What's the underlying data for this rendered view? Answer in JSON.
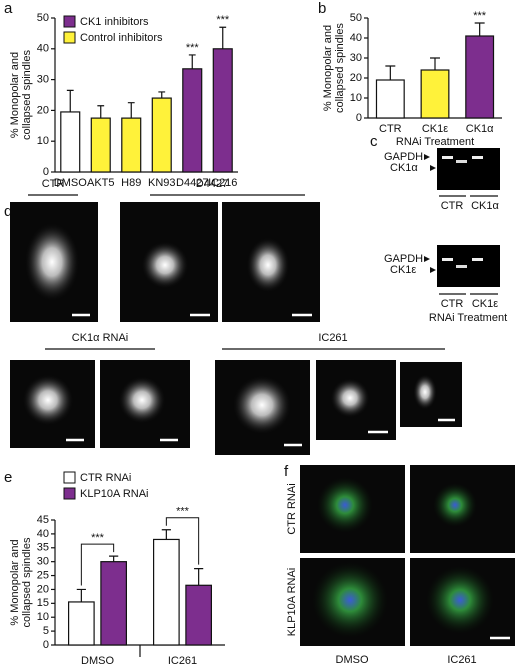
{
  "panel_labels": [
    "a",
    "b",
    "c",
    "d",
    "e",
    "f"
  ],
  "chart_data": [
    {
      "type": "bar",
      "categories": [
        "DMSO",
        "AKT5",
        "H89",
        "KN93",
        "D4427",
        "IC216"
      ],
      "values": [
        19.5,
        17.5,
        17.5,
        24,
        33.5,
        40
      ],
      "errors": [
        7,
        4,
        5,
        2,
        4.5,
        7
      ],
      "colors": [
        "#ffffff",
        "#fff23a",
        "#fff23a",
        "#fff23a",
        "#7d2e8e",
        "#7d2e8e"
      ],
      "significance": [
        null,
        null,
        null,
        null,
        "***",
        "***"
      ],
      "legend": [
        {
          "name": "CK1 inhibitors",
          "color": "#7d2e8e"
        },
        {
          "name": "Control inhibitors",
          "color": "#fff23a"
        }
      ],
      "y_label": [
        "% Monopolar and",
        "collapsed spindles"
      ],
      "ylim": [
        0,
        50
      ],
      "yticks": [
        0,
        10,
        20,
        30,
        40,
        50
      ]
    },
    {
      "type": "bar",
      "categories": [
        "CTR",
        "CK1ε",
        "CK1α"
      ],
      "values": [
        19,
        24,
        41
      ],
      "errors": [
        7,
        6,
        6.5
      ],
      "colors": [
        "#ffffff",
        "#fff23a",
        "#7d2e8e"
      ],
      "significance": [
        null,
        null,
        "***"
      ],
      "y_label": [
        "% Monopolar and",
        "collapsed spindles"
      ],
      "x_label": "RNAi Treatment",
      "ylim": [
        0,
        50
      ],
      "yticks": [
        0,
        10,
        20,
        30,
        40,
        50
      ]
    },
    {
      "type": "bar",
      "categories": [
        "DMSO",
        "IC261"
      ],
      "series": [
        {
          "name": "CTR RNAi",
          "color": "#ffffff",
          "values": [
            15.5,
            38
          ],
          "errors": [
            4.5,
            3.5
          ]
        },
        {
          "name": "KLP10A RNAi",
          "color": "#7d2e8e",
          "values": [
            30,
            21.5
          ],
          "errors": [
            2,
            6
          ]
        }
      ],
      "significance": [
        "***",
        "***"
      ],
      "y_label": [
        "% Monopolar and",
        "collapsed spindles"
      ],
      "ylim": [
        0,
        45
      ],
      "yticks": [
        0,
        5,
        10,
        15,
        20,
        25,
        30,
        35,
        40,
        45
      ]
    }
  ],
  "gel": {
    "top": {
      "bands": [
        "GAPDH",
        "CK1α"
      ],
      "lanes": [
        "CTR",
        "CK1α"
      ]
    },
    "bottom": {
      "bands": [
        "GAPDH",
        "CK1ε"
      ],
      "lanes": [
        "CTR",
        "CK1ε"
      ],
      "x_label": "RNAi Treatment"
    }
  },
  "micrographs": {
    "groups": [
      "CTR",
      "D4427",
      "CK1α RNAi",
      "IC261"
    ]
  },
  "merged_images": {
    "rows": [
      "CTR RNAi",
      "KLP10A RNAi"
    ],
    "columns": [
      "DMSO",
      "IC261"
    ]
  }
}
